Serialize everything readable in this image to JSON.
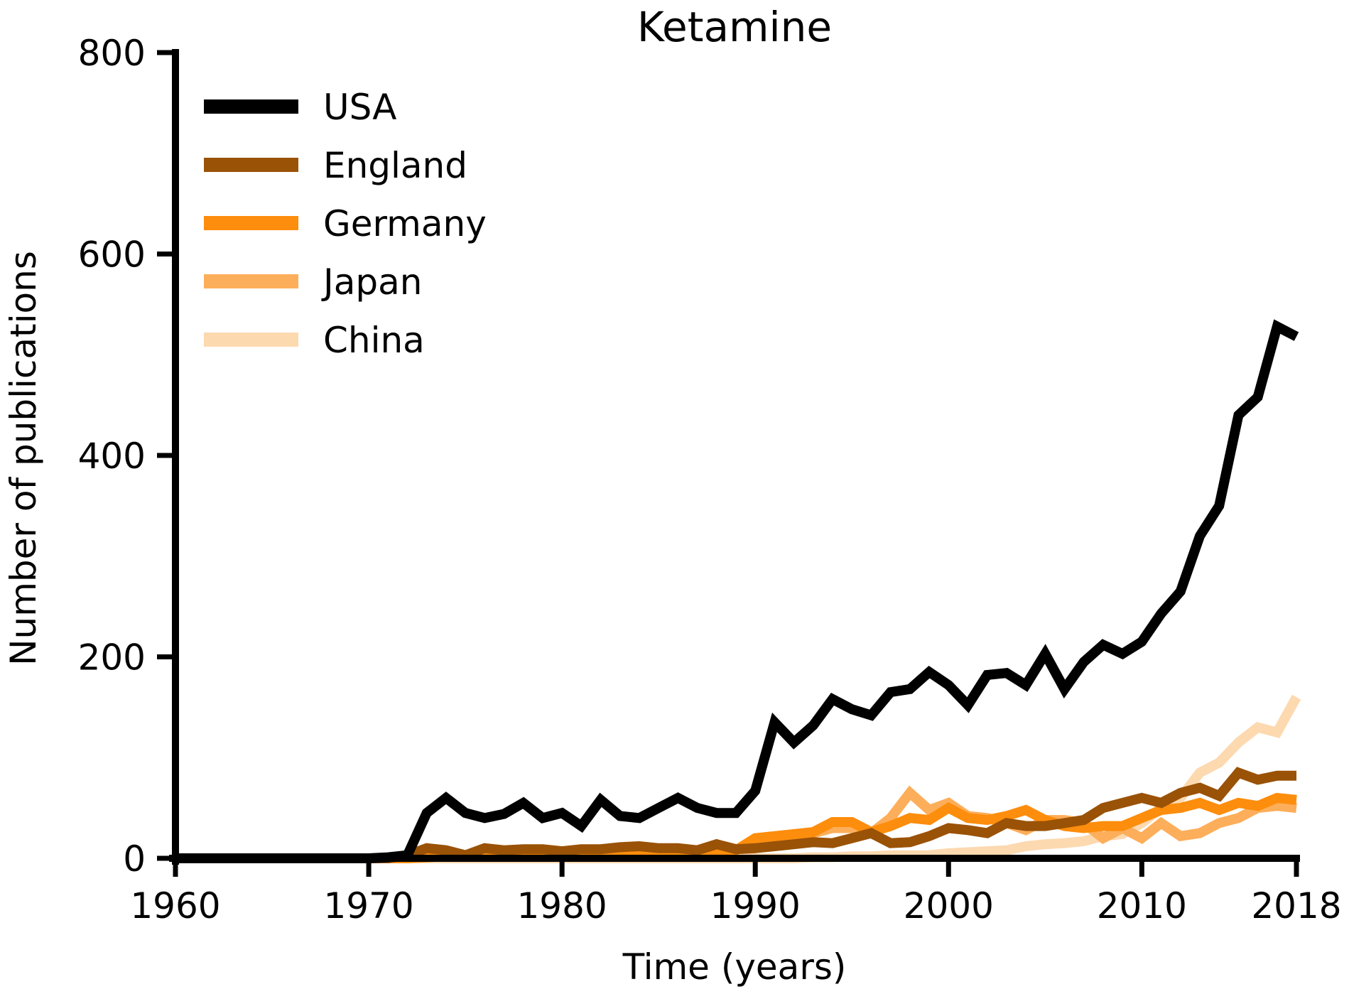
{
  "chart_data": {
    "type": "line",
    "title": "Ketamine",
    "xlabel": "Time (years)",
    "ylabel": "Number of publications",
    "xlim": [
      1960,
      2018
    ],
    "ylim": [
      0,
      800
    ],
    "xticks": [
      1960,
      1970,
      1980,
      1990,
      2000,
      2010,
      2018
    ],
    "yticks": [
      0,
      200,
      400,
      600,
      800
    ],
    "grid": false,
    "legend_position": "top-left",
    "x": [
      1960,
      1961,
      1962,
      1963,
      1964,
      1965,
      1966,
      1967,
      1968,
      1969,
      1970,
      1971,
      1972,
      1973,
      1974,
      1975,
      1976,
      1977,
      1978,
      1979,
      1980,
      1981,
      1982,
      1983,
      1984,
      1985,
      1986,
      1987,
      1988,
      1989,
      1990,
      1991,
      1992,
      1993,
      1994,
      1995,
      1996,
      1997,
      1998,
      1999,
      2000,
      2001,
      2002,
      2003,
      2004,
      2005,
      2006,
      2007,
      2008,
      2009,
      2010,
      2011,
      2012,
      2013,
      2014,
      2015,
      2016,
      2017,
      2018
    ],
    "series": [
      {
        "name": "China",
        "color": "#fdd9b0",
        "values": [
          0,
          0,
          0,
          0,
          0,
          0,
          0,
          0,
          0,
          0,
          0,
          0,
          0,
          0,
          0,
          0,
          0,
          0,
          0,
          0,
          0,
          0,
          0,
          0,
          0,
          0,
          0,
          0,
          0,
          0,
          0,
          0,
          0,
          1,
          1,
          2,
          2,
          3,
          3,
          3,
          5,
          6,
          7,
          8,
          12,
          14,
          15,
          17,
          22,
          24,
          35,
          50,
          60,
          85,
          95,
          115,
          130,
          125,
          160
        ]
      },
      {
        "name": "Japan",
        "color": "#fdae5a",
        "values": [
          0,
          0,
          0,
          0,
          0,
          0,
          0,
          0,
          0,
          0,
          0,
          0,
          0,
          2,
          2,
          3,
          4,
          5,
          5,
          5,
          6,
          6,
          6,
          7,
          7,
          7,
          7,
          8,
          8,
          9,
          10,
          18,
          15,
          25,
          30,
          30,
          25,
          40,
          65,
          48,
          55,
          42,
          40,
          35,
          28,
          38,
          38,
          35,
          20,
          30,
          20,
          35,
          22,
          25,
          35,
          40,
          50,
          52,
          50
        ]
      },
      {
        "name": "Germany",
        "color": "#fd8d0c",
        "values": [
          0,
          0,
          0,
          0,
          0,
          0,
          0,
          0,
          0,
          0,
          0,
          0,
          0,
          1,
          2,
          2,
          3,
          4,
          4,
          4,
          5,
          5,
          5,
          5,
          6,
          6,
          6,
          6,
          6,
          8,
          20,
          22,
          24,
          26,
          36,
          36,
          26,
          32,
          40,
          38,
          50,
          40,
          38,
          42,
          48,
          38,
          32,
          30,
          32,
          32,
          40,
          48,
          50,
          55,
          48,
          55,
          52,
          60,
          58
        ]
      },
      {
        "name": "England",
        "color": "#9a5206",
        "values": [
          0,
          0,
          0,
          0,
          0,
          0,
          0,
          0,
          0,
          0,
          0,
          0,
          3,
          10,
          8,
          3,
          10,
          8,
          9,
          9,
          7,
          9,
          9,
          11,
          12,
          10,
          10,
          8,
          14,
          9,
          10,
          12,
          14,
          16,
          15,
          20,
          25,
          15,
          16,
          22,
          30,
          28,
          25,
          35,
          32,
          32,
          35,
          38,
          50,
          55,
          60,
          55,
          65,
          70,
          62,
          85,
          78,
          82,
          82
        ]
      },
      {
        "name": "USA",
        "color": "#000000",
        "values": [
          0,
          0,
          0,
          0,
          0,
          0,
          0,
          0,
          0,
          0,
          0,
          1,
          3,
          45,
          60,
          45,
          40,
          44,
          55,
          40,
          45,
          32,
          58,
          42,
          40,
          50,
          60,
          50,
          45,
          45,
          67,
          135,
          115,
          132,
          158,
          148,
          142,
          165,
          168,
          185,
          172,
          152,
          182,
          184,
          172,
          203,
          168,
          195,
          212,
          203,
          215,
          243,
          265,
          320,
          350,
          440,
          458,
          528,
          518
        ]
      }
    ]
  }
}
